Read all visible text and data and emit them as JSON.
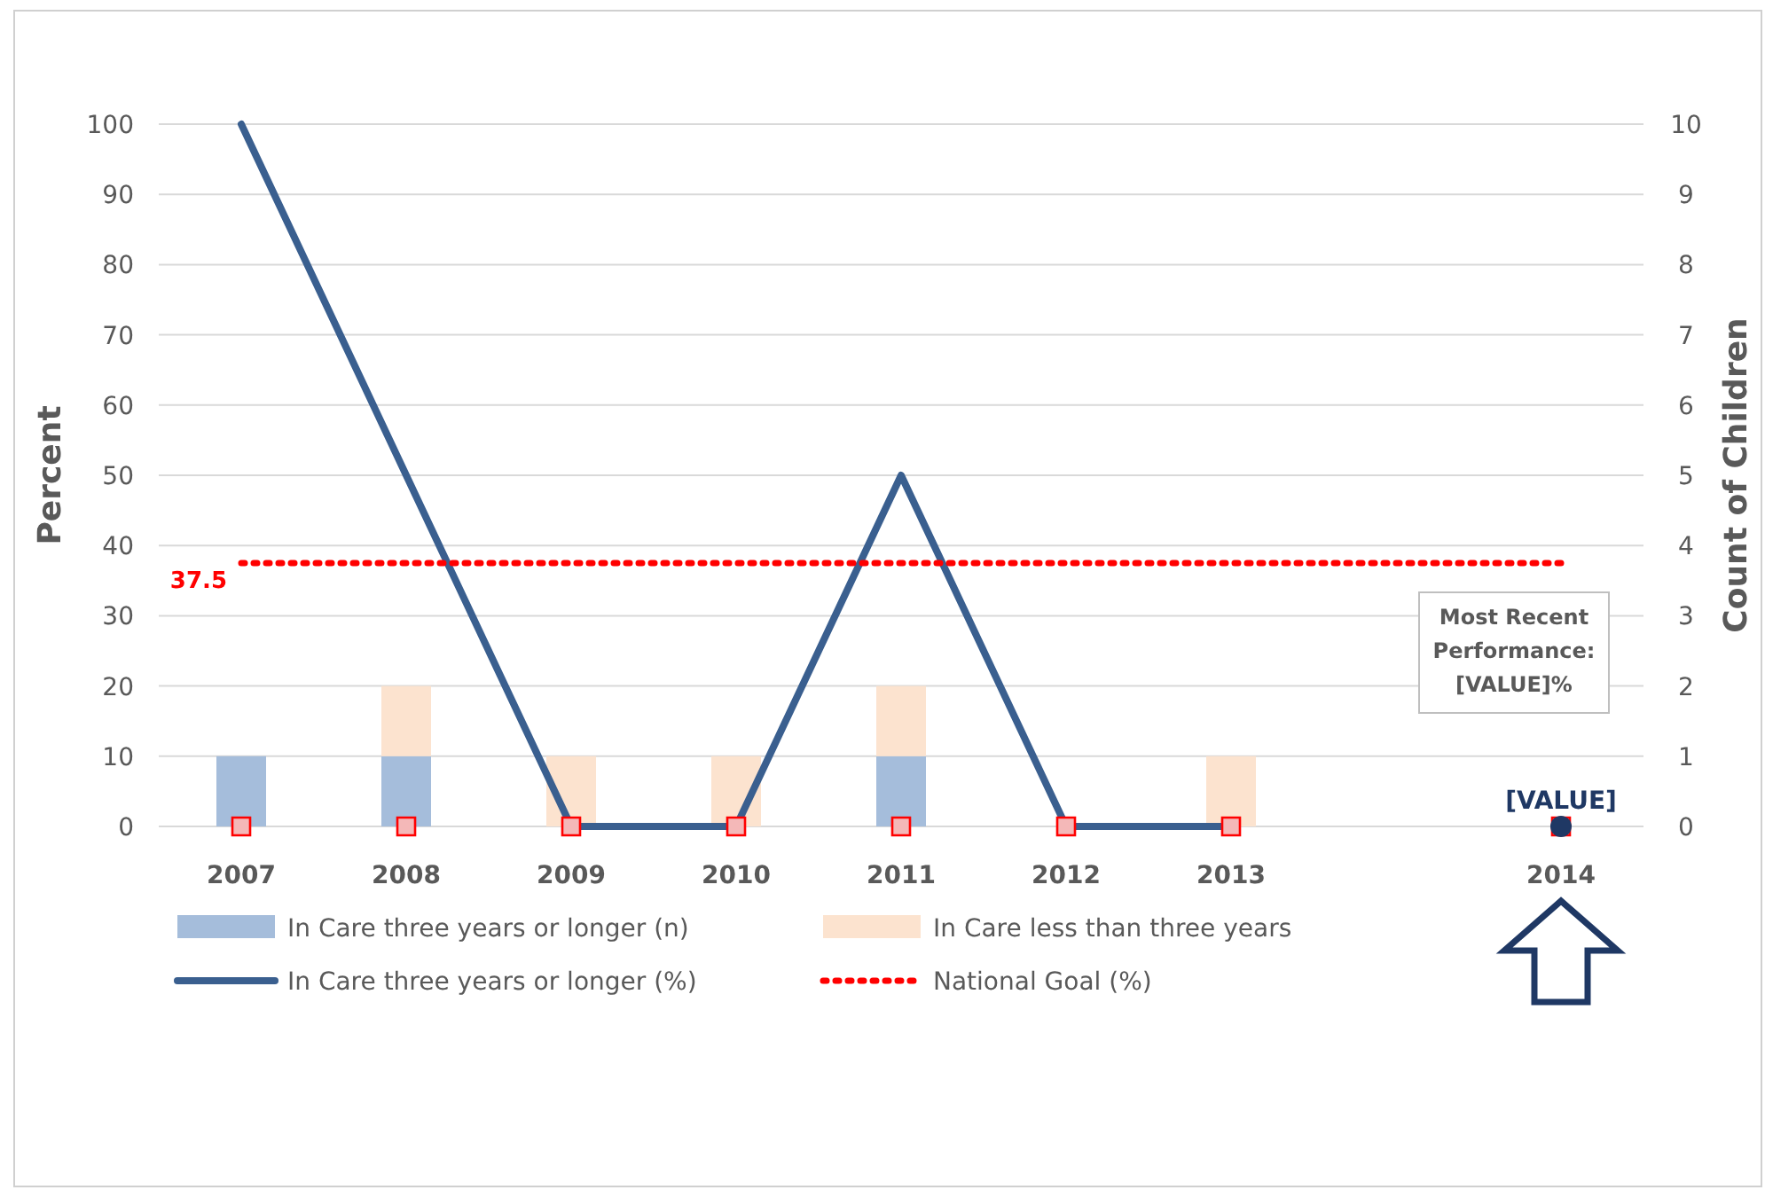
{
  "chart_data": {
    "type": "bar",
    "stacked": true,
    "categories": [
      "2007",
      "2008",
      "2009",
      "2010",
      "2011",
      "2012",
      "2013",
      null,
      "2014"
    ],
    "ylabel": "Percent",
    "y2label": "Count of Children",
    "ylim": [
      0,
      100
    ],
    "yticks": [
      0,
      10,
      20,
      30,
      40,
      50,
      60,
      70,
      80,
      90,
      100
    ],
    "y2lim": [
      0,
      10
    ],
    "y2ticks": [
      0,
      1,
      2,
      3,
      4,
      5,
      6,
      7,
      8,
      9,
      10
    ],
    "grid": "y",
    "legend": "bottom",
    "series": [
      {
        "name": "In Care three years or longer (n)",
        "axis": "y2",
        "color": "#a5bddb",
        "values": [
          1,
          1,
          0,
          0,
          1,
          0,
          0,
          null,
          null
        ]
      },
      {
        "name": "In Care less than three years",
        "axis": "y2",
        "color": "#fce3cf",
        "values": [
          0,
          1,
          1,
          1,
          1,
          0,
          1,
          null,
          null
        ]
      },
      {
        "name": "In Care three years or longer (%)",
        "type": "line",
        "color": "#3a5f8f",
        "line_style": "solid",
        "marker": "none",
        "values": [
          100,
          50,
          0,
          0,
          50,
          0,
          0,
          null,
          null
        ]
      },
      {
        "name": "National Goal (%)",
        "type": "line",
        "color": "#ff0000",
        "line_style": "dotted",
        "marker": "none",
        "values": [
          37.5,
          37.5,
          37.5,
          37.5,
          37.5,
          37.5,
          37.5,
          37.5,
          37.5
        ],
        "value_labels": [
          "37.5",
          null,
          null,
          null,
          null,
          null,
          null,
          null,
          null
        ]
      },
      {
        "type": "scatter",
        "color": "#ff0000",
        "marker": "square",
        "values": [
          0,
          0,
          0,
          0,
          0,
          0,
          0,
          null,
          0
        ]
      },
      {
        "type": "scatter",
        "color": "#1f3864",
        "marker": "circle",
        "values": [
          null,
          null,
          null,
          null,
          null,
          null,
          null,
          null,
          0
        ],
        "value_labels": [
          null,
          null,
          null,
          null,
          null,
          null,
          null,
          null,
          "[VALUE]"
        ]
      }
    ],
    "annotations": [
      "Most Recent Performance: [VALUE]%"
    ]
  }
}
